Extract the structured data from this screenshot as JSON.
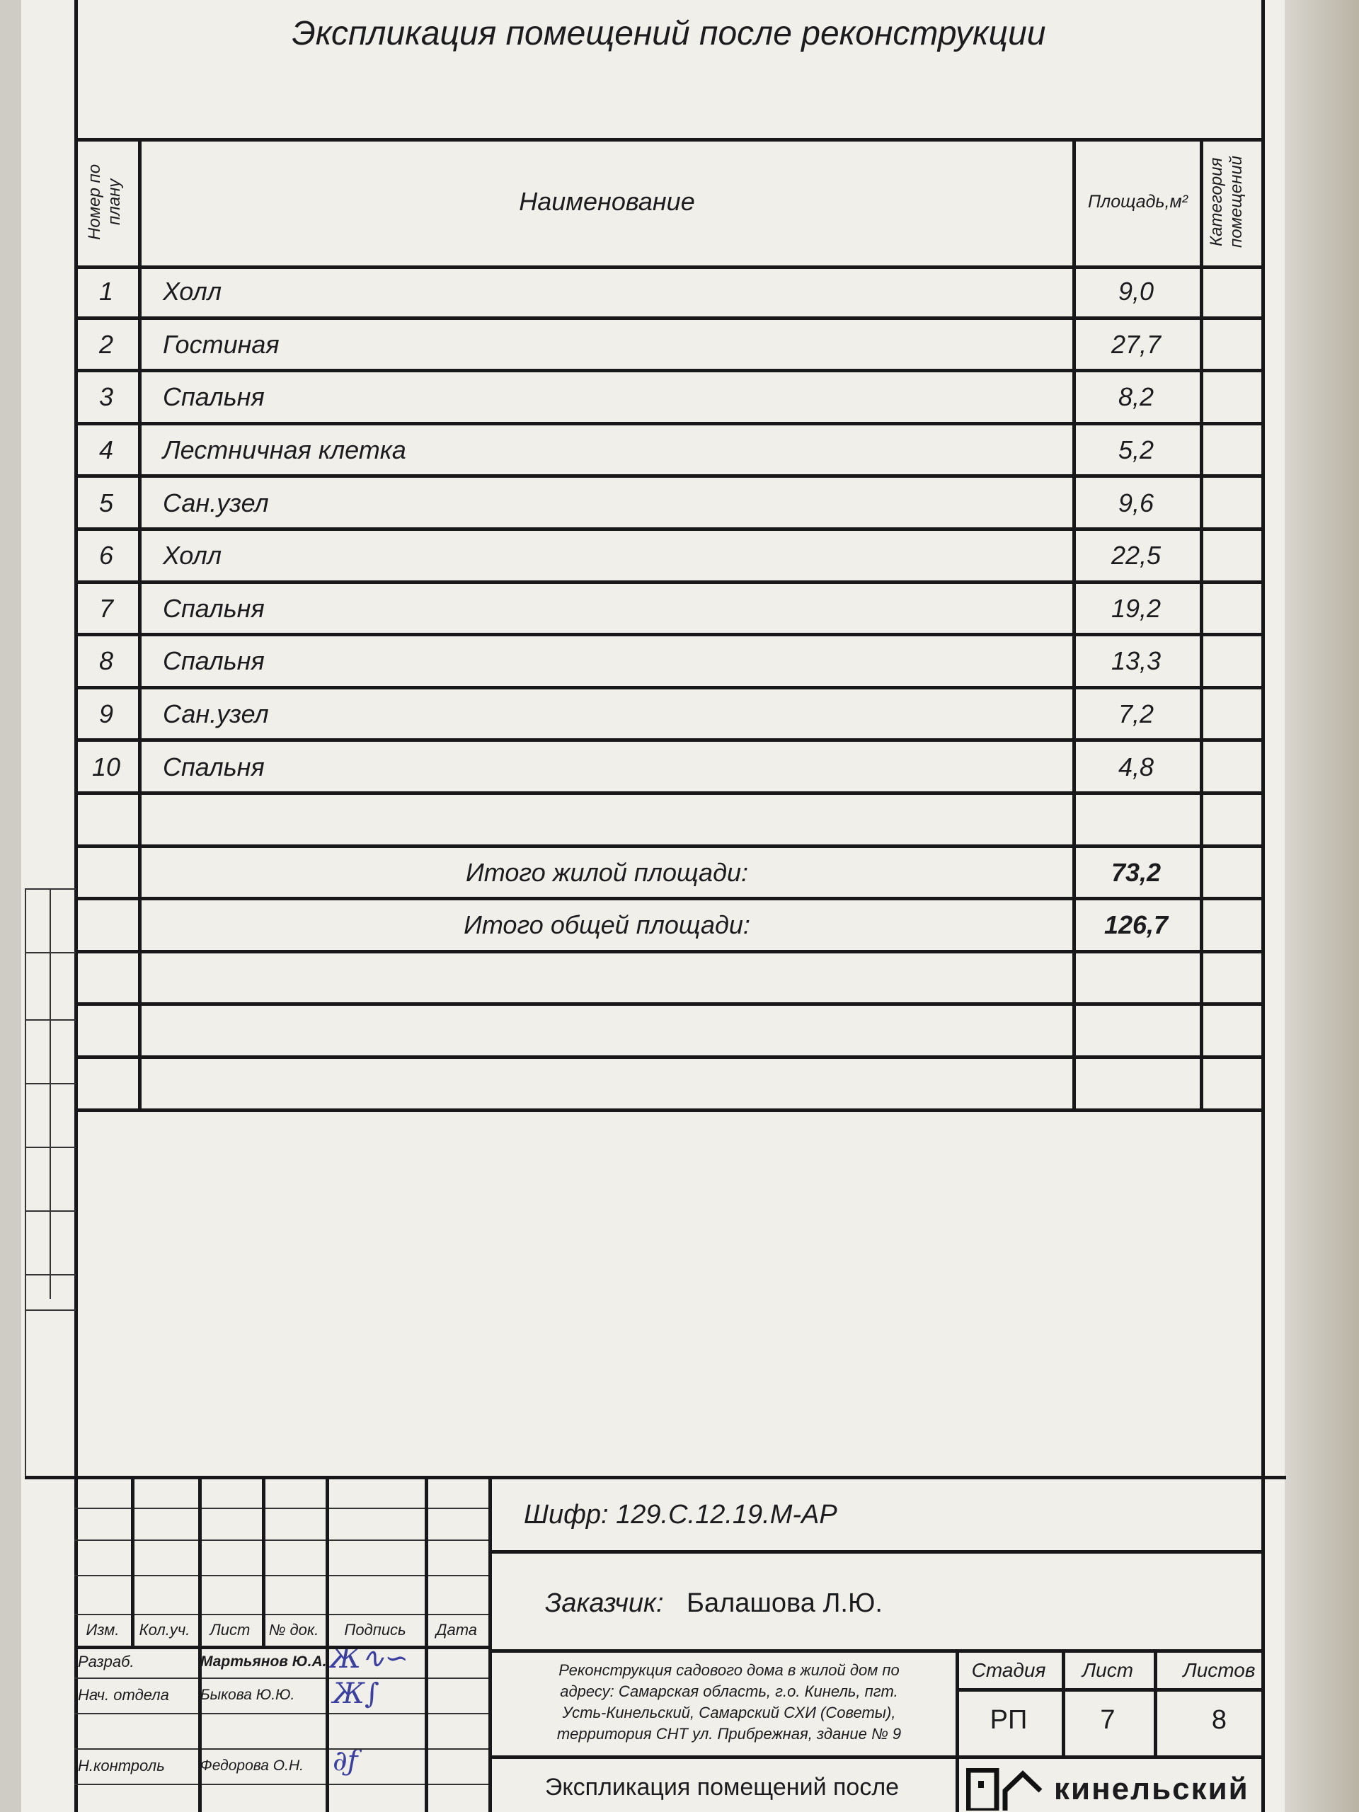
{
  "title": "Экспликация помещений после реконструкции",
  "table": {
    "headers": {
      "number": "Номер по плану",
      "name": "Наименование",
      "area": "Площадь,м²",
      "category": "Категория помещений"
    },
    "rows": [
      {
        "number": "1",
        "name": "Холл",
        "area": "9,0"
      },
      {
        "number": "2",
        "name": "Гостиная",
        "area": "27,7"
      },
      {
        "number": "3",
        "name": "Спальня",
        "area": "8,2"
      },
      {
        "number": "4",
        "name": "Лестничная клетка",
        "area": "5,2"
      },
      {
        "number": "5",
        "name": "Сан.узел",
        "area": "9,6"
      },
      {
        "number": "6",
        "name": "Холл",
        "area": "22,5"
      },
      {
        "number": "7",
        "name": "Спальня",
        "area": "19,2"
      },
      {
        "number": "8",
        "name": "Спальня",
        "area": "13,3"
      },
      {
        "number": "9",
        "name": "Сан.узел",
        "area": "7,2"
      },
      {
        "number": "10",
        "name": "Спальня",
        "area": "4,8"
      }
    ],
    "totals": [
      {
        "label": "Итого жилой площади:",
        "value": "73,2"
      },
      {
        "label": "Итого общей площади:",
        "value": "126,7"
      }
    ]
  },
  "title_block": {
    "cipher": "Шифр: 129.С.12.19.М-АР",
    "customer_label": "Заказчик:",
    "customer": "Балашова Л.Ю.",
    "columns": [
      "Изм.",
      "Кол.уч.",
      "Лист",
      "№ док.",
      "Подпись",
      "Дата"
    ],
    "people": [
      {
        "role": "Разраб.",
        "name": "Мартьянов Ю.А."
      },
      {
        "role": "Нач. отдела",
        "name": "Быкова Ю.Ю."
      },
      {
        "role": "Н.контроль",
        "name": "Федорова О.Н."
      }
    ],
    "project": "Реконструкция садового дома в жилой дом по адресу: Самарская область, г.о. Кинель, пгт. Усть-Кинельский, Самарский СХИ (Советы), территория СНТ ул. Прибрежная, здание № 9",
    "stage_label": "Стадия",
    "sheet_label": "Лист",
    "sheets_label": "Листов",
    "stage": "РП",
    "sheet": "7",
    "sheets": "8",
    "drawing_title": "Экспликация помещений после",
    "logo_text": "кинельский"
  }
}
